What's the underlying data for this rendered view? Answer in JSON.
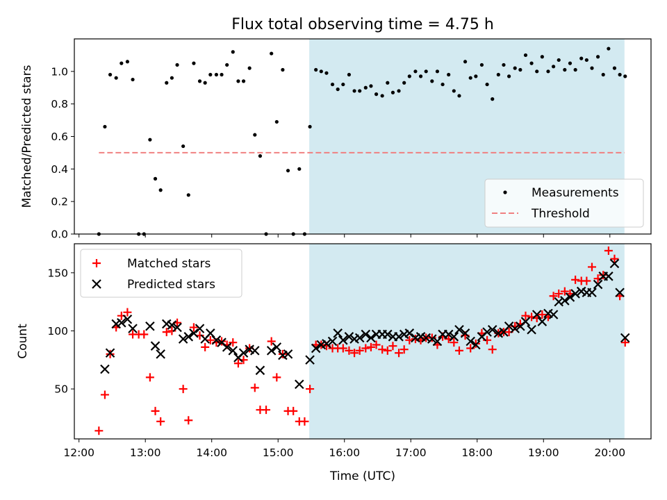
{
  "chart_data": [
    {
      "type": "scatter",
      "title": "Flux total observing time = 4.75 h",
      "ylabel": "Matched/Predicted stars",
      "xlabel": "",
      "ylim": [
        0,
        1.2
      ],
      "xlim": [
        11.93,
        20.62
      ],
      "yticks": [
        "0.0",
        "0.2",
        "0.4",
        "0.6",
        "0.8",
        "1.0"
      ],
      "grid": false,
      "legend": "lower-right",
      "highlight": {
        "x": [
          15.47,
          20.22
        ],
        "color": "#d3eaf1"
      },
      "threshold": {
        "name": "Threshold",
        "y": 0.5,
        "x": [
          12.3,
          20.22
        ],
        "color": "#f08080"
      },
      "series": [
        {
          "name": "Measurements",
          "color": "#000000",
          "x": [
            12.3,
            12.39,
            12.47,
            12.56,
            12.64,
            12.73,
            12.81,
            12.9,
            12.98,
            13.07,
            13.15,
            13.23,
            13.32,
            13.4,
            13.48,
            13.57,
            13.65,
            13.73,
            13.82,
            13.9,
            13.98,
            14.07,
            14.15,
            14.23,
            14.32,
            14.4,
            14.48,
            14.57,
            14.65,
            14.73,
            14.82,
            14.9,
            14.98,
            15.07,
            15.15,
            15.23,
            15.32,
            15.4,
            15.48,
            15.57,
            15.65,
            15.73,
            15.82,
            15.9,
            15.98,
            16.07,
            16.15,
            16.23,
            16.32,
            16.4,
            16.48,
            16.57,
            16.65,
            16.73,
            16.82,
            16.9,
            16.98,
            17.07,
            17.15,
            17.23,
            17.32,
            17.4,
            17.48,
            17.57,
            17.65,
            17.73,
            17.82,
            17.9,
            17.98,
            18.07,
            18.15,
            18.23,
            18.32,
            18.4,
            18.48,
            18.57,
            18.65,
            18.73,
            18.82,
            18.9,
            18.98,
            19.07,
            19.15,
            19.23,
            19.32,
            19.4,
            19.48,
            19.57,
            19.65,
            19.73,
            19.82,
            19.9,
            19.98,
            20.07,
            20.15,
            20.23
          ],
          "y": [
            0.0,
            0.66,
            0.98,
            0.96,
            1.05,
            1.06,
            0.95,
            0.0,
            0.0,
            0.58,
            0.34,
            0.27,
            0.93,
            0.96,
            1.04,
            0.54,
            0.24,
            1.05,
            0.94,
            0.93,
            0.98,
            0.98,
            0.98,
            1.04,
            1.12,
            0.94,
            0.94,
            1.02,
            0.61,
            0.48,
            0.0,
            1.11,
            0.69,
            1.01,
            0.39,
            0.0,
            0.4,
            0.0,
            0.66,
            1.01,
            1.0,
            0.99,
            0.92,
            0.89,
            0.92,
            0.98,
            0.88,
            0.88,
            0.9,
            0.91,
            0.86,
            0.85,
            0.93,
            0.87,
            0.88,
            0.93,
            0.97,
            1.0,
            0.97,
            1.0,
            0.94,
            1.0,
            0.92,
            0.98,
            0.88,
            0.85,
            1.06,
            0.96,
            0.97,
            1.04,
            0.92,
            0.83,
            0.98,
            1.04,
            0.97,
            1.02,
            1.01,
            1.1,
            1.05,
            1.0,
            1.09,
            1.0,
            1.03,
            1.07,
            1.01,
            1.05,
            1.01,
            1.08,
            1.07,
            1.02,
            1.09,
            0.98,
            1.14,
            1.02,
            0.98,
            0.97
          ]
        }
      ]
    },
    {
      "type": "scatter",
      "title": "",
      "xlabel": "Time (UTC)",
      "ylabel": "Count",
      "ylim": [
        7,
        175
      ],
      "xlim": [
        11.93,
        20.62
      ],
      "xticks": [
        "12:00",
        "13:00",
        "14:00",
        "15:00",
        "16:00",
        "17:00",
        "18:00",
        "19:00",
        "20:00"
      ],
      "xtick_values": [
        12,
        13,
        14,
        15,
        16,
        17,
        18,
        19,
        20
      ],
      "yticks": [
        "50",
        "100",
        "150"
      ],
      "ytick_values": [
        50,
        100,
        150
      ],
      "grid": false,
      "legend": "upper-left",
      "highlight": {
        "x": [
          15.47,
          20.22
        ],
        "color": "#d3eaf1"
      },
      "series": [
        {
          "name": "Matched stars",
          "color": "#ff0000",
          "marker": "+",
          "x": [
            12.3,
            12.39,
            12.47,
            12.56,
            12.64,
            12.73,
            12.81,
            12.9,
            12.98,
            13.07,
            13.15,
            13.23,
            13.32,
            13.4,
            13.48,
            13.57,
            13.65,
            13.73,
            13.82,
            13.9,
            13.98,
            14.07,
            14.15,
            14.23,
            14.32,
            14.4,
            14.48,
            14.57,
            14.65,
            14.73,
            14.82,
            14.9,
            14.98,
            15.07,
            15.15,
            15.23,
            15.32,
            15.4,
            15.48,
            15.57,
            15.65,
            15.73,
            15.82,
            15.9,
            15.98,
            16.07,
            16.15,
            16.23,
            16.32,
            16.4,
            16.48,
            16.57,
            16.65,
            16.73,
            16.82,
            16.9,
            16.98,
            17.07,
            17.15,
            17.23,
            17.32,
            17.4,
            17.48,
            17.57,
            17.65,
            17.73,
            17.82,
            17.9,
            17.98,
            18.07,
            18.15,
            18.23,
            18.32,
            18.4,
            18.48,
            18.57,
            18.65,
            18.73,
            18.82,
            18.9,
            18.98,
            19.07,
            19.15,
            19.23,
            19.32,
            19.4,
            19.48,
            19.57,
            19.65,
            19.73,
            19.82,
            19.9,
            19.98,
            20.07,
            20.15,
            20.23
          ],
          "y": [
            14,
            45,
            80,
            103,
            113,
            116,
            97,
            97,
            97,
            60,
            31,
            22,
            99,
            100,
            107,
            50,
            23,
            103,
            96,
            86,
            92,
            90,
            91,
            88,
            90,
            72,
            75,
            85,
            51,
            32,
            32,
            91,
            60,
            80,
            31,
            31,
            22,
            22,
            50,
            88,
            88,
            87,
            85,
            85,
            85,
            83,
            81,
            83,
            85,
            86,
            88,
            84,
            83,
            87,
            81,
            84,
            92,
            93,
            92,
            94,
            94,
            88,
            95,
            93,
            90,
            83,
            96,
            85,
            89,
            98,
            92,
            84,
            98,
            99,
            99,
            104,
            106,
            113,
            112,
            111,
            114,
            112,
            130,
            132,
            134,
            132,
            144,
            143,
            143,
            155,
            145,
            148,
            169,
            162,
            130,
            90
          ]
        },
        {
          "name": "Predicted stars",
          "color": "#000000",
          "marker": "x",
          "x": [
            12.39,
            12.47,
            12.56,
            12.64,
            12.73,
            12.81,
            13.07,
            13.15,
            13.23,
            13.32,
            13.4,
            13.48,
            13.57,
            13.65,
            13.73,
            13.82,
            13.9,
            13.98,
            14.07,
            14.15,
            14.23,
            14.32,
            14.4,
            14.48,
            14.57,
            14.65,
            14.73,
            14.9,
            14.98,
            15.07,
            15.15,
            15.32,
            15.48,
            15.57,
            15.65,
            15.73,
            15.82,
            15.9,
            15.98,
            16.07,
            16.15,
            16.23,
            16.32,
            16.4,
            16.48,
            16.57,
            16.65,
            16.73,
            16.82,
            16.9,
            16.98,
            17.07,
            17.15,
            17.23,
            17.32,
            17.4,
            17.48,
            17.57,
            17.65,
            17.73,
            17.82,
            17.9,
            17.98,
            18.07,
            18.15,
            18.23,
            18.32,
            18.4,
            18.48,
            18.57,
            18.65,
            18.73,
            18.82,
            18.9,
            18.98,
            19.07,
            19.15,
            19.23,
            19.32,
            19.4,
            19.48,
            19.57,
            19.65,
            19.73,
            19.82,
            19.9,
            19.98,
            20.07,
            20.15,
            20.23
          ],
          "y": [
            67,
            81,
            106,
            107,
            110,
            102,
            104,
            87,
            80,
            106,
            105,
            103,
            93,
            95,
            98,
            102,
            93,
            98,
            92,
            90,
            86,
            83,
            77,
            81,
            84,
            83,
            66,
            83,
            86,
            79,
            80,
            54,
            75,
            85,
            88,
            89,
            91,
            98,
            92,
            95,
            93,
            94,
            97,
            94,
            97,
            97,
            97,
            95,
            95,
            97,
            98,
            94,
            95,
            94,
            93,
            91,
            97,
            97,
            95,
            101,
            98,
            91,
            88,
            95,
            99,
            101,
            98,
            99,
            104,
            102,
            104,
            108,
            101,
            114,
            108,
            115,
            114,
            125,
            126,
            129,
            132,
            134,
            133,
            133,
            140,
            147,
            147,
            158,
            133,
            94
          ]
        }
      ]
    }
  ]
}
